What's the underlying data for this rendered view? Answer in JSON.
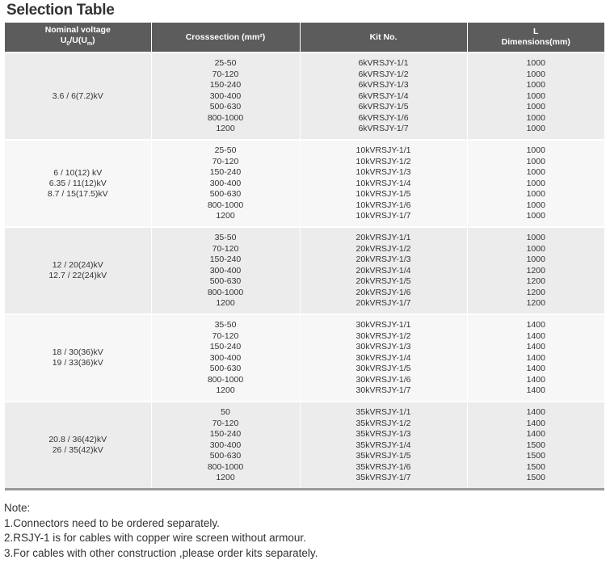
{
  "title": "Selection Table",
  "headers": {
    "voltage_line1": "Nominal voltage",
    "voltage_u0": "U",
    "voltage_sub0": "0",
    "voltage_mid": "/U(U",
    "voltage_subm": "m",
    "voltage_end": ")",
    "cross": "Crosssection (mm²)",
    "kit": "Kit No.",
    "dim_l": "L",
    "dim": "Dimensions(mm)"
  },
  "groups": [
    {
      "voltages": [
        "3.6 / 6(7.2)kV"
      ],
      "cross": [
        "25-50",
        "70-120",
        "150-240",
        "300-400",
        "500-630",
        "800-1000",
        "1200"
      ],
      "kits": [
        "6kVRSJY-1/1",
        "6kVRSJY-1/2",
        "6kVRSJY-1/3",
        "6kVRSJY-1/4",
        "6kVRSJY-1/5",
        "6kVRSJY-1/6",
        "6kVRSJY-1/7"
      ],
      "dims": [
        "1000",
        "1000",
        "1000",
        "1000",
        "1000",
        "1000",
        "1000"
      ]
    },
    {
      "voltages": [
        "6 / 10(12) kV",
        "6.35 / 11(12)kV",
        "8.7 / 15(17.5)kV"
      ],
      "cross": [
        "25-50",
        "70-120",
        "150-240",
        "300-400",
        "500-630",
        "800-1000",
        "1200"
      ],
      "kits": [
        "10kVRSJY-1/1",
        "10kVRSJY-1/2",
        "10kVRSJY-1/3",
        "10kVRSJY-1/4",
        "10kVRSJY-1/5",
        "10kVRSJY-1/6",
        "10kVRSJY-1/7"
      ],
      "dims": [
        "1000",
        "1000",
        "1000",
        "1000",
        "1000",
        "1000",
        "1000"
      ]
    },
    {
      "voltages": [
        "12 / 20(24)kV",
        "12.7 / 22(24)kV"
      ],
      "cross": [
        "35-50",
        "70-120",
        "150-240",
        "300-400",
        "500-630",
        "800-1000",
        "1200"
      ],
      "kits": [
        "20kVRSJY-1/1",
        "20kVRSJY-1/2",
        "20kVRSJY-1/3",
        "20kVRSJY-1/4",
        "20kVRSJY-1/5",
        "20kVRSJY-1/6",
        "20kVRSJY-1/7"
      ],
      "dims": [
        "1000",
        "1000",
        "1000",
        "1200",
        "1200",
        "1200",
        "1200"
      ]
    },
    {
      "voltages": [
        "18 / 30(36)kV",
        "19 / 33(36)kV"
      ],
      "cross": [
        "35-50",
        "70-120",
        "150-240",
        "300-400",
        "500-630",
        "800-1000",
        "1200"
      ],
      "kits": [
        "30kVRSJY-1/1",
        "30kVRSJY-1/2",
        "30kVRSJY-1/3",
        "30kVRSJY-1/4",
        "30kVRSJY-1/5",
        "30kVRSJY-1/6",
        "30kVRSJY-1/7"
      ],
      "dims": [
        "1400",
        "1400",
        "1400",
        "1400",
        "1400",
        "1400",
        "1400"
      ]
    },
    {
      "voltages": [
        "20.8 / 36(42)kV",
        "26 / 35(42)kV"
      ],
      "cross": [
        "50",
        "70-120",
        "150-240",
        "300-400",
        "500-630",
        "800-1000",
        "1200"
      ],
      "kits": [
        "35kVRSJY-1/1",
        "35kVRSJY-1/2",
        "35kVRSJY-1/3",
        "35kVRSJY-1/4",
        "35kVRSJY-1/5",
        "35kVRSJY-1/6",
        "35kVRSJY-1/7"
      ],
      "dims": [
        "1400",
        "1400",
        "1400",
        "1500",
        "1500",
        "1500",
        "1500"
      ]
    }
  ],
  "notes": [
    "Note:",
    "1.Connectors need to be ordered separately.",
    "2.RSJY-1 is for cables with copper wire screen without armour.",
    "3.For cables with other construction ,please order kits separately."
  ]
}
